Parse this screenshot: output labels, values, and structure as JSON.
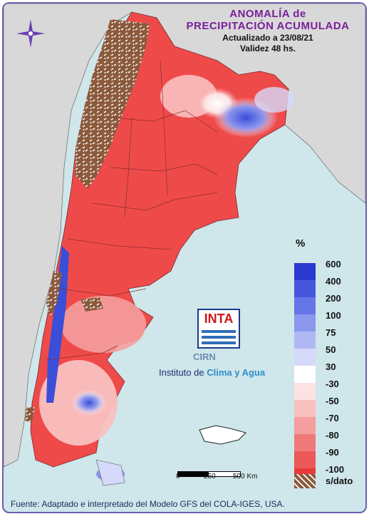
{
  "header": {
    "title_line1": "ANOMALÍA de",
    "title_line2": "PRECIPITACIÓN ACUMULADA",
    "updated": "Actualizado a 23/08/21",
    "validity": "Validez 48 hs."
  },
  "legend": {
    "unit": "%",
    "items": [
      {
        "label": "600",
        "color": "#2a39d0"
      },
      {
        "label": "400",
        "color": "#4657dd"
      },
      {
        "label": "200",
        "color": "#6676e6"
      },
      {
        "label": "100",
        "color": "#8c97ee"
      },
      {
        "label": "75",
        "color": "#b0b8f4"
      },
      {
        "label": "50",
        "color": "#d6dafa"
      },
      {
        "label": "30",
        "color": "#ffffff"
      },
      {
        "label": "-30",
        "color": "#fde2e2"
      },
      {
        "label": "-50",
        "color": "#f9c0c0"
      },
      {
        "label": "-70",
        "color": "#f59e9e"
      },
      {
        "label": "-80",
        "color": "#f07a7a"
      },
      {
        "label": "-90",
        "color": "#eb5858"
      },
      {
        "label": "-100",
        "color": "#e63b3b"
      }
    ],
    "nodata_label": "s/dato",
    "nodata_color": "#8b5a3c"
  },
  "logo": {
    "inta": "INTA",
    "cirn": "CIRN",
    "institute_prefix": "Instituto de ",
    "institute_highlight": "Clima y Agua"
  },
  "scale": {
    "labels": [
      "0",
      "250",
      "500 Km"
    ]
  },
  "footer": "Fuente: Adaptado e interpretado del Modelo GFS del COLA-IGES, USA.",
  "colors": {
    "ocean": "#cfe6ea",
    "neighbor_land": "#d8d8d8",
    "dry": "#ef4a4a",
    "wet": "#4a5ce0",
    "title": "#7a1f9b"
  }
}
